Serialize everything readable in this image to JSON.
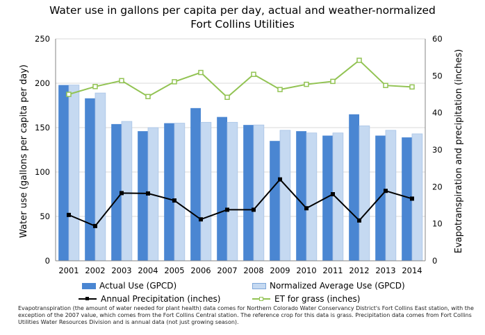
{
  "chart_data": {
    "type": "bar",
    "title": "Water use in gallons per capita per day, actual and weather-normalized",
    "subtitle": "Fort Collins Utilities",
    "categories": [
      "2001",
      "2002",
      "2003",
      "2004",
      "2005",
      "2006",
      "2007",
      "2008",
      "2009",
      "2010",
      "2011",
      "2012",
      "2013",
      "2014"
    ],
    "ylabel": "Water use (gallons per capita per day)",
    "ylabel_right": "Evapotranspiration and precipitation (inches)",
    "ylim": [
      0,
      250
    ],
    "yticks": [
      "0",
      "50",
      "100",
      "150",
      "200",
      "250"
    ],
    "ylim_right": [
      0,
      60
    ],
    "yticks_right": [
      "0",
      "10",
      "20",
      "30",
      "40",
      "50",
      "60"
    ],
    "grid": true,
    "legend_position": "bottom",
    "series": [
      {
        "name": "Actual Use (GPCD)",
        "type": "bar",
        "axis": "left",
        "color": "#4a86d2",
        "values": [
          198,
          183,
          154,
          146,
          155,
          172,
          162,
          153,
          135,
          146,
          141,
          165,
          141,
          139
        ]
      },
      {
        "name": "Normalized Average Use (GPCD)",
        "type": "bar",
        "axis": "left",
        "color": "#c5d9f1",
        "values": [
          198,
          189,
          157,
          150,
          155,
          156,
          156,
          153,
          147,
          144,
          144,
          152,
          147,
          143
        ]
      },
      {
        "name": "Annual Precipitation (inches)",
        "type": "line",
        "axis": "right",
        "color": "#000000",
        "values": [
          12.4,
          9.4,
          18.3,
          18.2,
          16.3,
          11.2,
          13.8,
          13.8,
          22.0,
          14.2,
          18.0,
          10.9,
          18.9,
          16.8
        ]
      },
      {
        "name": "ET for grass (inches)",
        "type": "line",
        "axis": "right",
        "color": "#92c353",
        "values": [
          45.0,
          47.1,
          48.7,
          44.4,
          48.4,
          50.9,
          44.2,
          50.4,
          46.3,
          47.7,
          48.5,
          54.2,
          47.4,
          47.0
        ]
      }
    ],
    "footnote": "Evapotranspiration (the amount of water needed for plant health) data comes for Northern Colorado Water Conservancy District's Fort Collins East station, with the exception of the 2007 value, which comes from the Fort Collins Central station. The reference crop for this data is grass. Precipitation data comes from Fort Collins Utilities Water Resources Division and is annual data (not just growing season)."
  }
}
